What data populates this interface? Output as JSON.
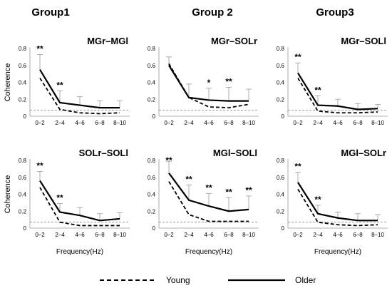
{
  "groups": [
    "Group1",
    "Group 2",
    "Group3"
  ],
  "legend": [
    {
      "name": "Young",
      "style": "dashed"
    },
    {
      "name": "Older",
      "style": "solid"
    }
  ],
  "chart_data": [
    {
      "type": "line",
      "panel": "MGr–MGl",
      "ylabel": "Coherence",
      "xlabel": "",
      "categories": [
        "0–2",
        "2–4",
        "4–6",
        "6–8",
        "8–10"
      ],
      "ylim": [
        0,
        0.8
      ],
      "yticks": [
        "0",
        "0.2",
        "0.4",
        "0.6",
        "0.8"
      ],
      "threshold": 0.07,
      "series": [
        {
          "name": "Young",
          "values": [
            0.45,
            0.08,
            0.04,
            0.03,
            0.04
          ]
        },
        {
          "name": "Older",
          "values": [
            0.55,
            0.16,
            0.13,
            0.1,
            0.1
          ],
          "error": [
            0.18,
            0.14,
            0.1,
            0.08,
            0.08
          ]
        }
      ],
      "significance": [
        "**",
        "**",
        "",
        "",
        ""
      ]
    },
    {
      "type": "line",
      "panel": "MGr–SOLr",
      "ylabel": "",
      "xlabel": "",
      "categories": [
        "0–2",
        "2–4",
        "4–6",
        "6–8",
        "8–10"
      ],
      "ylim": [
        0,
        0.8
      ],
      "yticks": [
        "0",
        "0.2",
        "0.4",
        "0.6",
        "0.8"
      ],
      "threshold": 0.07,
      "series": [
        {
          "name": "Young",
          "values": [
            0.62,
            0.22,
            0.11,
            0.1,
            0.14
          ]
        },
        {
          "name": "Older",
          "values": [
            0.6,
            0.22,
            0.19,
            0.18,
            0.18
          ],
          "error": [
            0.1,
            0.16,
            0.14,
            0.16,
            0.14
          ]
        }
      ],
      "significance": [
        "",
        "",
        "*",
        "**",
        ""
      ]
    },
    {
      "type": "line",
      "panel": "MGr–SOLl",
      "ylabel": "",
      "xlabel": "",
      "categories": [
        "0–2",
        "2–4",
        "4–6",
        "6–8",
        "8–10"
      ],
      "ylim": [
        0,
        0.8
      ],
      "yticks": [
        "0",
        "0.2",
        "0.4",
        "0.6",
        "0.8"
      ],
      "threshold": 0.07,
      "series": [
        {
          "name": "Young",
          "values": [
            0.45,
            0.06,
            0.04,
            0.04,
            0.05
          ]
        },
        {
          "name": "Older",
          "values": [
            0.51,
            0.13,
            0.12,
            0.08,
            0.09
          ],
          "error": [
            0.12,
            0.11,
            0.08,
            0.07,
            0.05
          ]
        }
      ],
      "significance": [
        "**",
        "**",
        "",
        "",
        ""
      ]
    },
    {
      "type": "line",
      "panel": "SOLr–SOLl",
      "ylabel": "Coherence",
      "xlabel": "Frequency(Hz)",
      "categories": [
        "0–2",
        "2–4",
        "4–6",
        "6–8",
        "8–10"
      ],
      "ylim": [
        0,
        0.8
      ],
      "yticks": [
        "0",
        "0.2",
        "0.4",
        "0.6",
        "0.8"
      ],
      "threshold": 0.07,
      "series": [
        {
          "name": "Young",
          "values": [
            0.48,
            0.07,
            0.03,
            0.03,
            0.03
          ]
        },
        {
          "name": "Older",
          "values": [
            0.56,
            0.19,
            0.15,
            0.09,
            0.11
          ],
          "error": [
            0.11,
            0.1,
            0.09,
            0.08,
            0.07
          ]
        }
      ],
      "significance": [
        "**",
        "**",
        "",
        "",
        ""
      ]
    },
    {
      "type": "line",
      "panel": "MGl–SOLl",
      "ylabel": "",
      "xlabel": "Frequency(Hz)",
      "categories": [
        "0–2",
        "2–4",
        "4–6",
        "6–8",
        "8–10"
      ],
      "ylim": [
        0,
        0.8
      ],
      "yticks": [
        "0",
        "0.2",
        "0.4",
        "0.6",
        "0.8"
      ],
      "threshold": 0.07,
      "series": [
        {
          "name": "Young",
          "values": [
            0.55,
            0.16,
            0.08,
            0.08,
            0.08
          ]
        },
        {
          "name": "Older",
          "values": [
            0.65,
            0.33,
            0.26,
            0.2,
            0.22
          ],
          "error": [
            0.14,
            0.18,
            0.15,
            0.16,
            0.16
          ]
        }
      ],
      "significance": [
        "**",
        "**",
        "**",
        "**",
        "**"
      ]
    },
    {
      "type": "line",
      "panel": "MGl–SOLr",
      "ylabel": "",
      "xlabel": "Frequency(Hz)",
      "categories": [
        "0–2",
        "2–4",
        "4–6",
        "6–8",
        "8–10"
      ],
      "ylim": [
        0,
        0.8
      ],
      "yticks": [
        "0",
        "0.2",
        "0.4",
        "0.6",
        "0.8"
      ],
      "threshold": 0.07,
      "series": [
        {
          "name": "Young",
          "values": [
            0.46,
            0.07,
            0.04,
            0.03,
            0.04
          ]
        },
        {
          "name": "Older",
          "values": [
            0.54,
            0.17,
            0.12,
            0.09,
            0.09
          ],
          "error": [
            0.12,
            0.1,
            0.07,
            0.08,
            0.07
          ]
        }
      ],
      "significance": [
        "**",
        "**",
        "",
        "",
        ""
      ]
    }
  ]
}
